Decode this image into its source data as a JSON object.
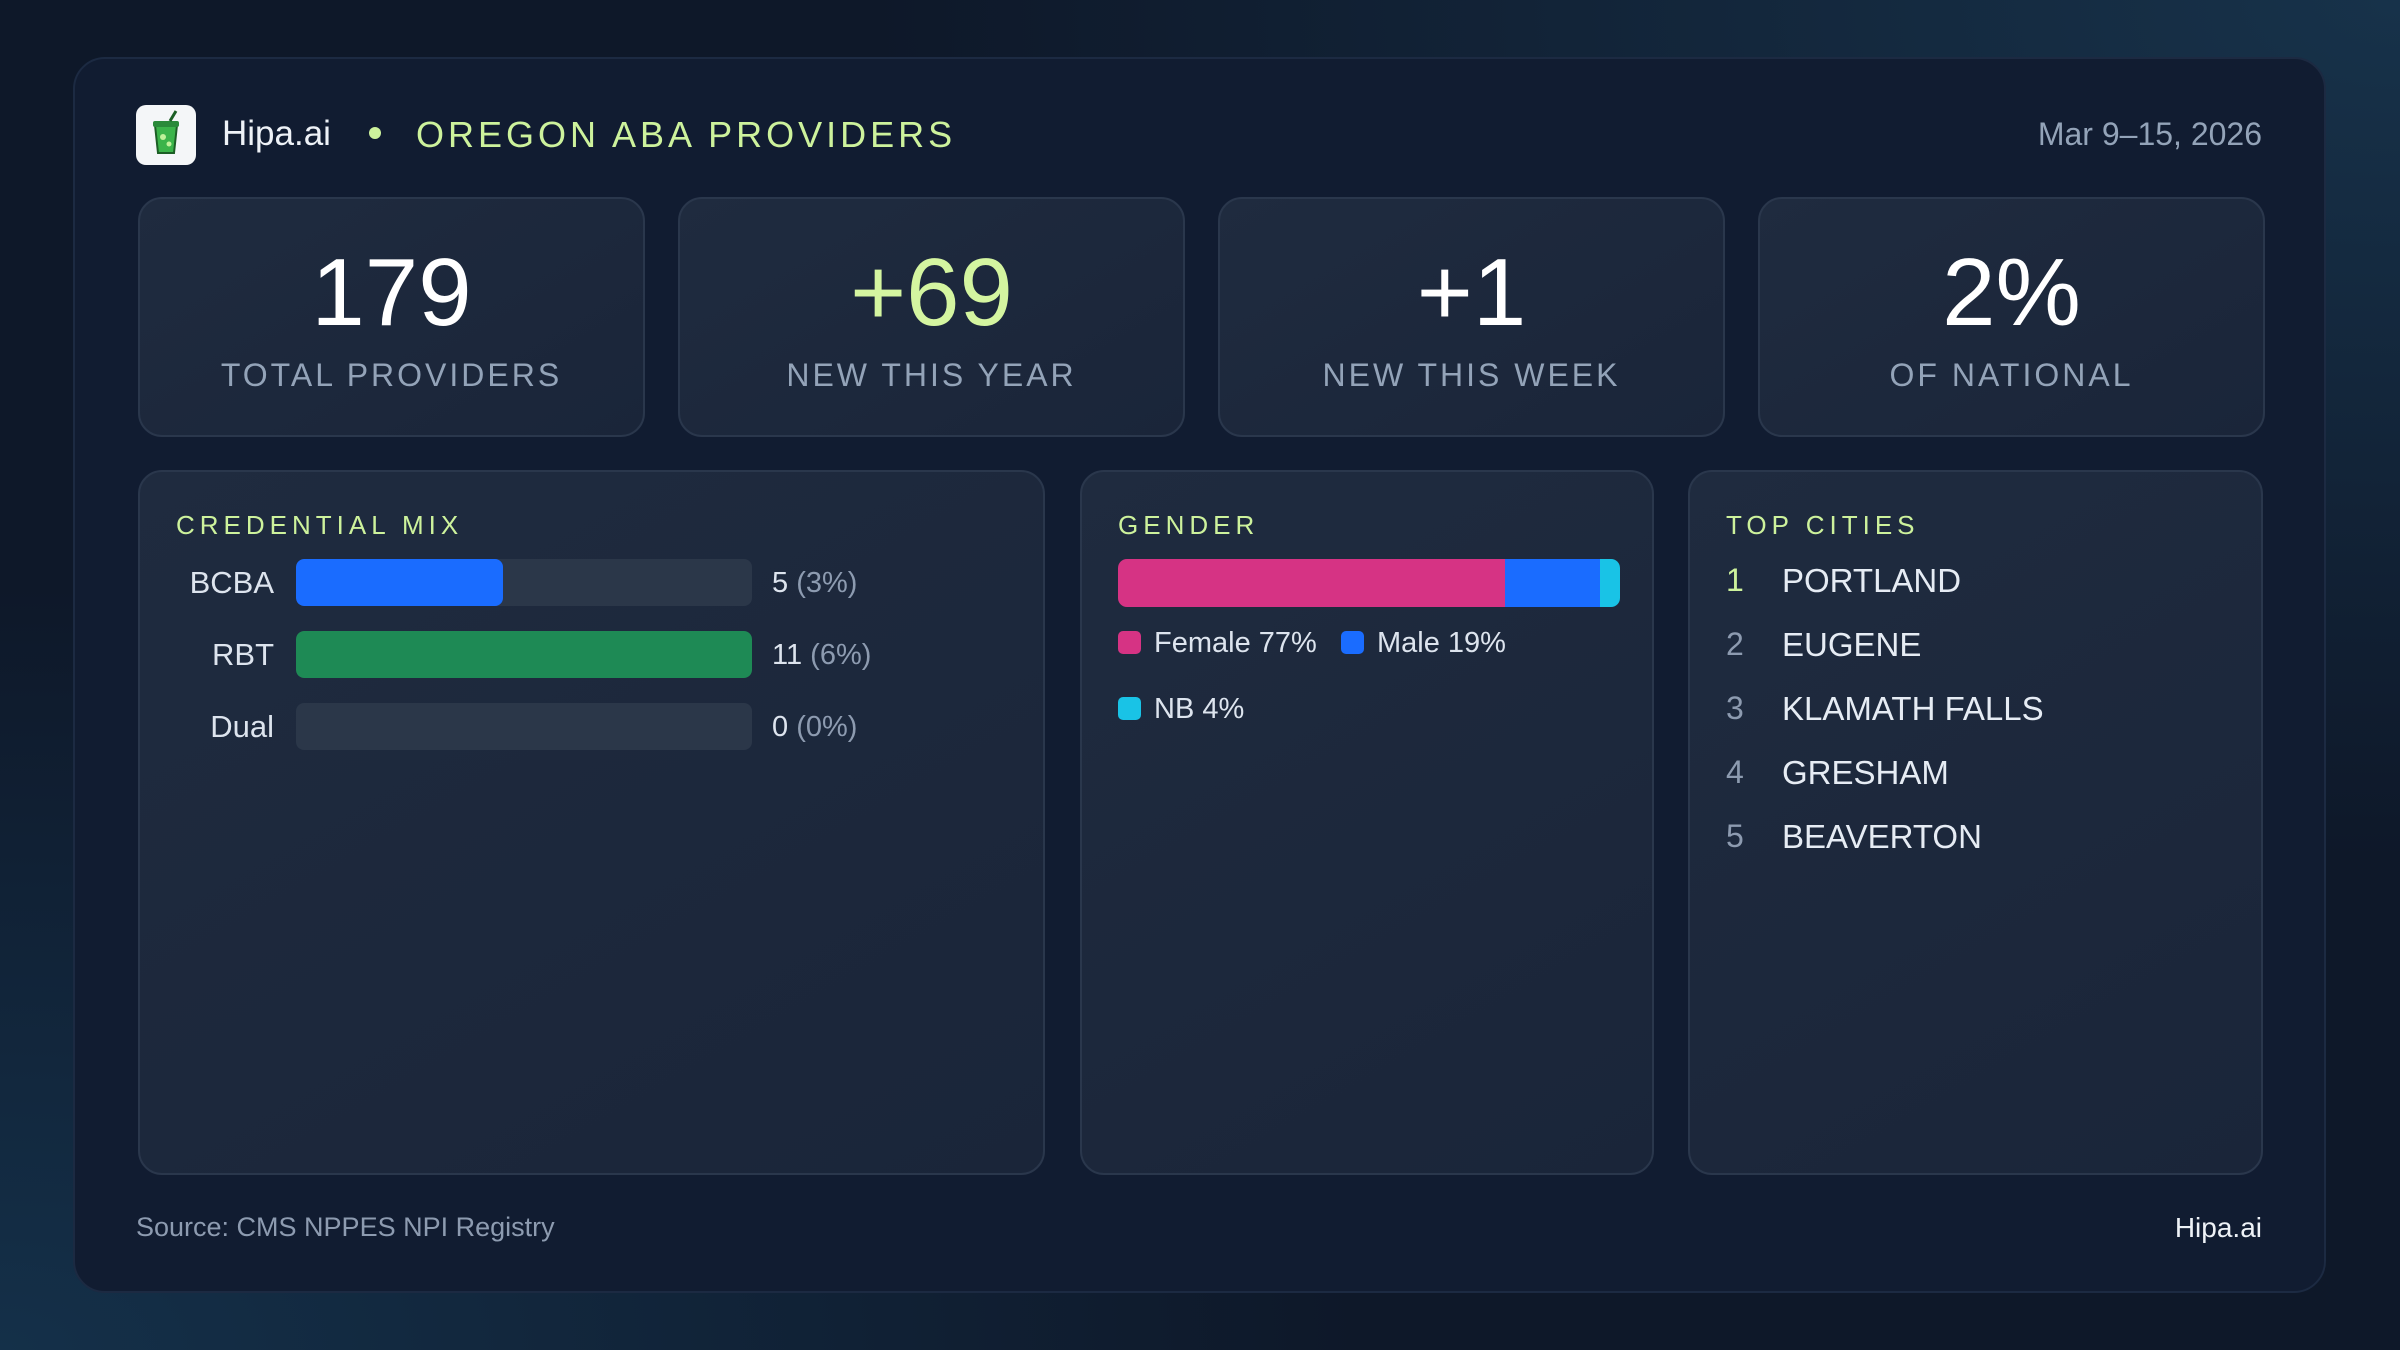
{
  "header": {
    "brand": "Hipa.ai",
    "title": "OREGON ABA PROVIDERS",
    "date": "Mar 9–15, 2026"
  },
  "kpis": [
    {
      "value": "179",
      "label": "TOTAL PROVIDERS",
      "color": "#ffffff"
    },
    {
      "value": "+69",
      "label": "NEW THIS YEAR",
      "color": "#d4f5a0"
    },
    {
      "value": "+1",
      "label": "NEW THIS WEEK",
      "color": "#ffffff"
    },
    {
      "value": "2%",
      "label": "OF NATIONAL",
      "color": "#ffffff"
    }
  ],
  "credential_mix": {
    "type": "bar",
    "title": "CREDENTIAL MIX",
    "categories": [
      "BCBA",
      "RBT",
      "Dual"
    ],
    "values": [
      5,
      11,
      0
    ],
    "share_labels": [
      "(3%)",
      "(6%)",
      "(0%)"
    ],
    "colors": [
      "#1a6cff",
      "#1e8a55",
      "#1a6cff"
    ]
  },
  "gender": {
    "type": "stacked-bar",
    "title": "GENDER",
    "series": [
      {
        "name": "Female",
        "value": 77,
        "value_label": "77%",
        "color": "#d63384"
      },
      {
        "name": "Male",
        "value": 19,
        "value_label": "19%",
        "color": "#1a6cff"
      },
      {
        "name": "NB",
        "value": 4,
        "value_label": "4%",
        "color": "#19c3e6"
      }
    ]
  },
  "top_cities": {
    "title": "TOP CITIES",
    "items": [
      {
        "rank": 1,
        "name": "PORTLAND"
      },
      {
        "rank": 2,
        "name": "EUGENE"
      },
      {
        "rank": 3,
        "name": "KLAMATH FALLS"
      },
      {
        "rank": 4,
        "name": "GRESHAM"
      },
      {
        "rank": 5,
        "name": "BEAVERTON"
      }
    ]
  },
  "footer": {
    "source": "Source: CMS NPPES NPI Registry",
    "brand": "Hipa.ai"
  }
}
